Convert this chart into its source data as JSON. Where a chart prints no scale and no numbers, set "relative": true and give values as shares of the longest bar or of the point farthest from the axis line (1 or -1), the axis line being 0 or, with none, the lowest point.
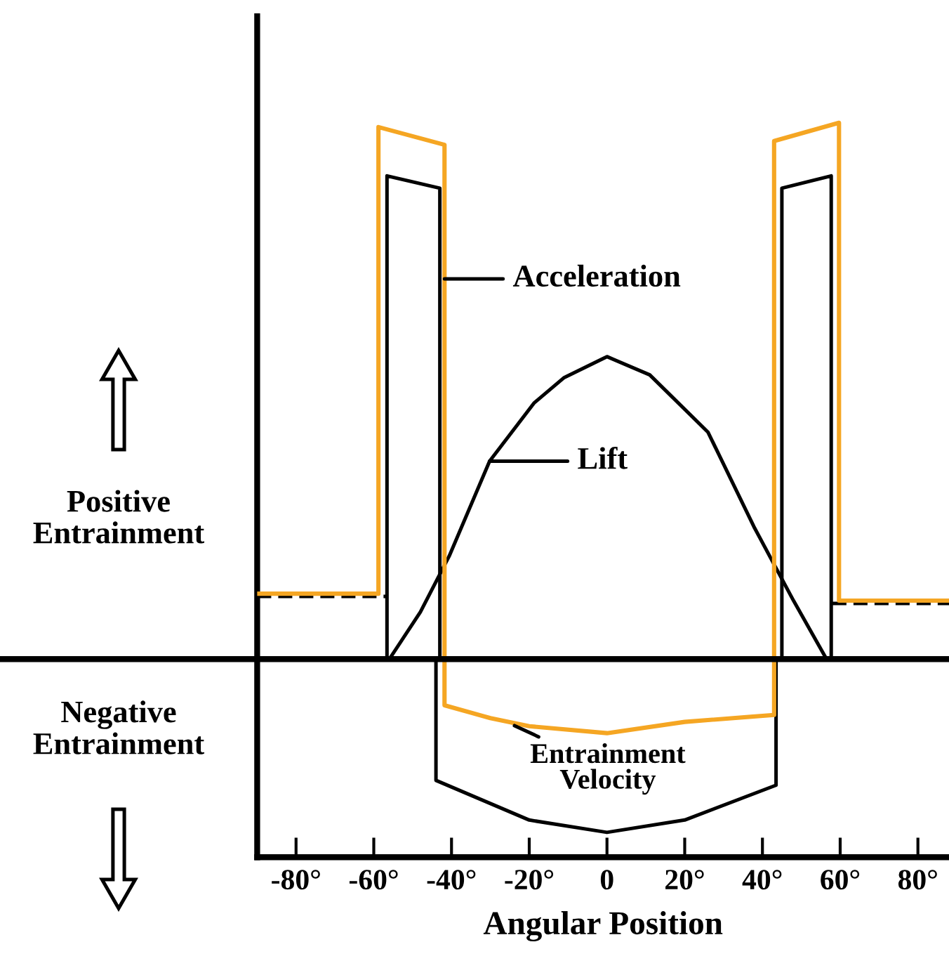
{
  "chart_data": {
    "type": "line",
    "relative": true,
    "xlabel": "Angular Position",
    "xlim": [
      -90,
      88
    ],
    "xticks": [
      {
        "value": -80,
        "label": "-80°"
      },
      {
        "value": -60,
        "label": "-60°"
      },
      {
        "value": -40,
        "label": "-40°"
      },
      {
        "value": -20,
        "label": "-20°"
      },
      {
        "value": 0,
        "label": "0"
      },
      {
        "value": 20,
        "label": "20°"
      },
      {
        "value": 40,
        "label": "40°"
      },
      {
        "value": 60,
        "label": "60°"
      },
      {
        "value": 80,
        "label": "80°"
      }
    ],
    "grid": false,
    "legend": false,
    "marker": "none",
    "series": [
      {
        "color": "#f5a623",
        "x": [
          -90,
          -58.8,
          -58.8,
          -41.8,
          -41.8,
          -30,
          -20,
          0,
          20,
          43,
          43,
          59.7,
          59.7,
          88
        ],
        "values": [
          0.122,
          0.122,
          0.992,
          0.959,
          -0.086,
          -0.11,
          -0.125,
          -0.138,
          -0.117,
          -0.104,
          0.966,
          1.0,
          0.109,
          0.109
        ]
      },
      {
        "color": "#000000",
        "x": [
          -56,
          -48,
          -40.6,
          -30.2,
          -18.7,
          -11,
          0,
          11,
          26,
          37.8,
          48,
          56.5
        ],
        "values": [
          0,
          0.088,
          0.192,
          0.369,
          0.478,
          0.525,
          0.564,
          0.53,
          0.423,
          0.247,
          0.109,
          0
        ]
      },
      {
        "color": "#000000",
        "x": [
          -44,
          -44,
          -20,
          0,
          20,
          43.5,
          43.5
        ],
        "values": [
          0,
          -0.226,
          -0.3,
          -0.323,
          -0.3,
          -0.235,
          0
        ]
      },
      {
        "color": "#000000",
        "x": [
          -56.6,
          -56.6,
          -43,
          -43,
          null,
          45,
          45,
          57.7,
          57.7
        ],
        "values": [
          0,
          0.901,
          0.878,
          0,
          null,
          0,
          0.878,
          0.901,
          0
        ]
      },
      {
        "color": "#000000",
        "line_style": "dashed",
        "x": [
          -90,
          -57,
          null,
          58,
          88
        ],
        "values": [
          0.117,
          0.117,
          null,
          0.104,
          0.104
        ]
      }
    ],
    "annotations": [
      {
        "text": "Acceleration",
        "x": -41.8,
        "y": 0.709
      },
      {
        "text": "Lift",
        "x": -30.2,
        "y": 0.369
      },
      {
        "text": "Entrainment\nVelocity",
        "x": -23.8,
        "y": -0.124
      },
      "Positive\nEntrainment",
      "Negative\nEntrainment"
    ]
  }
}
